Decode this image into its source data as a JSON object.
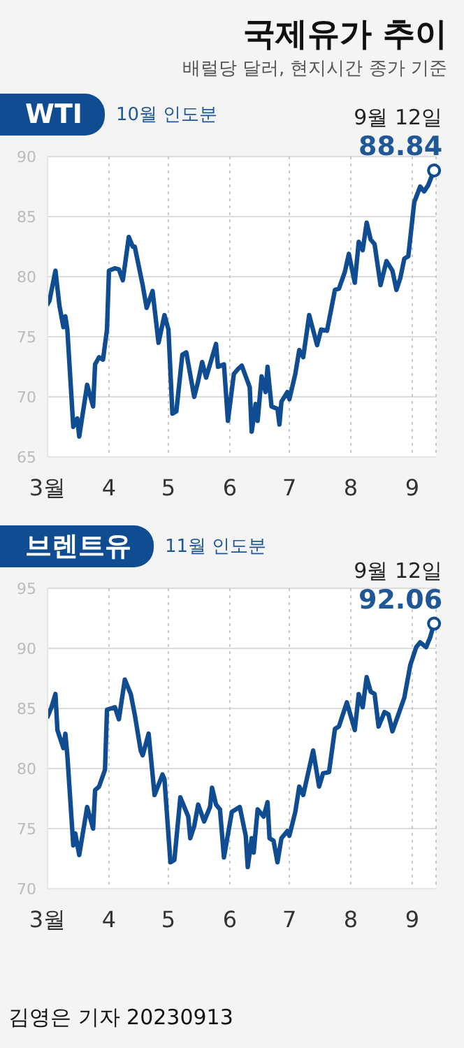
{
  "chart_data": [
    {
      "type": "other",
      "title": "국제유가 추이",
      "subtitle": "배럴당 달러, 현지시간 종가 기준"
    },
    {
      "type": "line",
      "title": "WTI",
      "subtitle": "10월 인도분",
      "xlim": [
        "--03-01",
        "--09-13"
      ],
      "xticks": [
        {
          "value": "--03-01",
          "label": "3월"
        },
        {
          "value": "--04-01",
          "label": "4"
        },
        {
          "value": "--05-01",
          "label": "5"
        },
        {
          "value": "--06-01",
          "label": "6"
        },
        {
          "value": "--07-01",
          "label": "7"
        },
        {
          "value": "--08-01",
          "label": "8"
        },
        {
          "value": "--09-01",
          "label": "9"
        }
      ],
      "ylim": [
        65,
        90
      ],
      "yticks": [
        65,
        70,
        75,
        80,
        85,
        90
      ],
      "grid": true,
      "annotations": [
        {
          "text": "9월 12일",
          "x": "--09-12",
          "y": 88.84
        }
      ],
      "series": [
        {
          "color": "#0f4c92",
          "x": [
            "--03-01",
            "--03-02",
            "--03-05",
            "--03-07",
            "--03-09",
            "--03-10",
            "--03-11",
            "--03-14",
            "--03-16",
            "--03-17",
            "--03-21",
            "--03-24",
            "--03-25",
            "--03-27",
            "--03-29",
            "--03-31",
            "--04-01",
            "--04-04",
            "--04-06",
            "--04-08",
            "--04-11",
            "--04-13",
            "--04-14",
            "--04-16",
            "--04-18",
            "--04-20",
            "--04-23",
            "--04-26",
            "--04-29",
            "--05-01",
            "--05-03",
            "--05-05",
            "--05-08",
            "--05-10",
            "--05-14",
            "--05-16",
            "--05-18",
            "--05-20",
            "--05-25",
            "--05-26",
            "--05-29",
            "--05-31",
            "--06-03",
            "--06-05",
            "--06-07",
            "--06-11",
            "--06-12",
            "--06-14",
            "--06-15",
            "--06-17",
            "--06-19",
            "--06-20",
            "--06-22",
            "--06-25",
            "--06-26",
            "--06-27",
            "--06-30",
            "--07-01",
            "--07-04",
            "--07-06",
            "--07-08",
            "--07-11",
            "--07-15",
            "--07-17",
            "--07-20",
            "--07-24",
            "--07-26",
            "--07-29",
            "--07-31",
            "--08-03",
            "--08-05",
            "--08-07",
            "--08-09",
            "--08-11",
            "--08-13",
            "--08-16",
            "--08-19",
            "--08-22",
            "--08-24",
            "--08-26",
            "--08-28",
            "--08-30",
            "--09-02",
            "--09-05",
            "--09-07",
            "--09-09",
            "--09-12"
          ],
          "values": [
            77.7,
            78.0,
            80.5,
            77.6,
            75.8,
            76.7,
            75.6,
            67.5,
            68.2,
            66.7,
            71.0,
            69.2,
            72.7,
            73.3,
            73.1,
            75.6,
            80.5,
            80.7,
            80.6,
            79.7,
            83.3,
            82.5,
            82.5,
            80.9,
            79.3,
            77.4,
            78.8,
            74.5,
            76.8,
            75.6,
            68.6,
            68.8,
            73.5,
            73.7,
            70.0,
            71.3,
            72.9,
            71.6,
            74.4,
            72.5,
            72.7,
            68.0,
            71.9,
            72.3,
            72.6,
            70.8,
            67.1,
            69.4,
            68.0,
            71.7,
            70.4,
            72.5,
            69.2,
            69.0,
            67.7,
            69.6,
            70.4,
            69.8,
            71.9,
            73.9,
            73.3,
            76.8,
            74.3,
            75.6,
            75.5,
            78.9,
            79.0,
            80.4,
            81.9,
            79.5,
            82.9,
            82.2,
            84.5,
            83.1,
            82.7,
            79.3,
            81.3,
            80.5,
            78.9,
            79.9,
            81.5,
            81.7,
            86.2,
            87.5,
            87.1,
            87.6,
            88.84
          ],
          "value_labels": [
            null,
            null,
            null,
            null,
            null,
            null,
            null,
            null,
            null,
            null,
            null,
            null,
            null,
            null,
            null,
            null,
            null,
            null,
            null,
            null,
            null,
            null,
            null,
            null,
            null,
            null,
            null,
            null,
            null,
            null,
            null,
            null,
            null,
            null,
            null,
            null,
            null,
            null,
            null,
            null,
            null,
            null,
            null,
            null,
            null,
            null,
            null,
            null,
            null,
            null,
            null,
            null,
            null,
            null,
            null,
            null,
            null,
            null,
            null,
            null,
            null,
            null,
            null,
            null,
            null,
            null,
            null,
            null,
            null,
            null,
            null,
            null,
            null,
            null,
            null,
            null,
            null,
            null,
            null,
            null,
            null,
            null,
            null,
            null,
            null,
            null,
            "88.84"
          ]
        }
      ]
    },
    {
      "type": "line",
      "title": "브렌트유",
      "subtitle": "11월 인도분",
      "xlim": [
        "--03-01",
        "--09-13"
      ],
      "xticks": [
        {
          "value": "--03-01",
          "label": "3월"
        },
        {
          "value": "--04-01",
          "label": "4"
        },
        {
          "value": "--05-01",
          "label": "5"
        },
        {
          "value": "--06-01",
          "label": "6"
        },
        {
          "value": "--07-01",
          "label": "7"
        },
        {
          "value": "--08-01",
          "label": "8"
        },
        {
          "value": "--09-01",
          "label": "9"
        }
      ],
      "ylim": [
        70,
        95
      ],
      "yticks": [
        70,
        75,
        80,
        85,
        90,
        95
      ],
      "grid": true,
      "annotations": [
        {
          "text": "9월 12일",
          "x": "--09-12",
          "y": 92.06
        },
        "김영은 기자 20230913"
      ],
      "series": [
        {
          "color": "#0f4c92",
          "x": [
            "--03-01",
            "--03-03",
            "--03-05",
            "--03-06",
            "--03-09",
            "--03-10",
            "--03-11",
            "--03-14",
            "--03-15",
            "--03-17",
            "--03-21",
            "--03-24",
            "--03-25",
            "--03-27",
            "--03-30",
            "--03-31",
            "--04-04",
            "--04-06",
            "--04-09",
            "--04-12",
            "--04-14",
            "--04-17",
            "--04-18",
            "--04-21",
            "--04-24",
            "--04-28",
            "--04-29",
            "--05-02",
            "--05-04",
            "--05-07",
            "--05-11",
            "--05-12",
            "--05-14",
            "--05-16",
            "--05-19",
            "--05-22",
            "--05-23",
            "--05-25",
            "--05-27",
            "--05-29",
            "--06-02",
            "--06-04",
            "--06-06",
            "--06-09",
            "--06-10",
            "--06-12",
            "--06-13",
            "--06-15",
            "--06-18",
            "--06-20",
            "--06-21",
            "--06-23",
            "--06-25",
            "--06-27",
            "--06-30",
            "--07-01",
            "--07-04",
            "--07-06",
            "--07-08",
            "--07-13",
            "--07-16",
            "--07-18",
            "--07-21",
            "--07-24",
            "--07-26",
            "--07-30",
            "--08-03",
            "--08-05",
            "--08-07",
            "--08-09",
            "--08-11",
            "--08-13",
            "--08-15",
            "--08-18",
            "--08-20",
            "--08-22",
            "--08-25",
            "--08-28",
            "--08-31",
            "--09-03",
            "--09-05",
            "--09-08",
            "--09-10",
            "--09-12"
          ],
          "values": [
            84.3,
            85.1,
            86.2,
            83.2,
            81.7,
            82.9,
            81.1,
            73.6,
            74.6,
            72.8,
            76.8,
            75.0,
            78.2,
            78.5,
            79.9,
            84.9,
            85.1,
            84.1,
            87.4,
            86.2,
            84.5,
            81.5,
            81.1,
            82.9,
            77.8,
            79.5,
            79.1,
            72.2,
            72.4,
            77.6,
            76.0,
            74.2,
            75.2,
            77.0,
            75.6,
            76.8,
            78.4,
            77.0,
            76.6,
            72.6,
            76.4,
            76.6,
            76.8,
            74.4,
            71.8,
            74.2,
            73.0,
            76.6,
            76.0,
            77.2,
            74.2,
            74.0,
            72.2,
            74.2,
            74.8,
            74.4,
            76.4,
            78.5,
            77.8,
            81.5,
            78.5,
            79.6,
            79.7,
            83.3,
            83.5,
            85.5,
            83.2,
            86.2,
            85.1,
            87.6,
            86.4,
            86.2,
            83.5,
            84.7,
            84.5,
            83.1,
            84.5,
            85.9,
            88.6,
            90.1,
            90.5,
            90.1,
            90.9,
            92.06
          ],
          "value_labels": [
            null,
            null,
            null,
            null,
            null,
            null,
            null,
            null,
            null,
            null,
            null,
            null,
            null,
            null,
            null,
            null,
            null,
            null,
            null,
            null,
            null,
            null,
            null,
            null,
            null,
            null,
            null,
            null,
            null,
            null,
            null,
            null,
            null,
            null,
            null,
            null,
            null,
            null,
            null,
            null,
            null,
            null,
            null,
            null,
            null,
            null,
            null,
            null,
            null,
            null,
            null,
            null,
            null,
            null,
            null,
            null,
            null,
            null,
            null,
            null,
            null,
            null,
            null,
            null,
            null,
            null,
            null,
            null,
            null,
            null,
            null,
            null,
            null,
            null,
            null,
            null,
            null,
            null,
            null,
            null,
            null,
            null,
            null,
            "92.06"
          ]
        }
      ]
    }
  ]
}
